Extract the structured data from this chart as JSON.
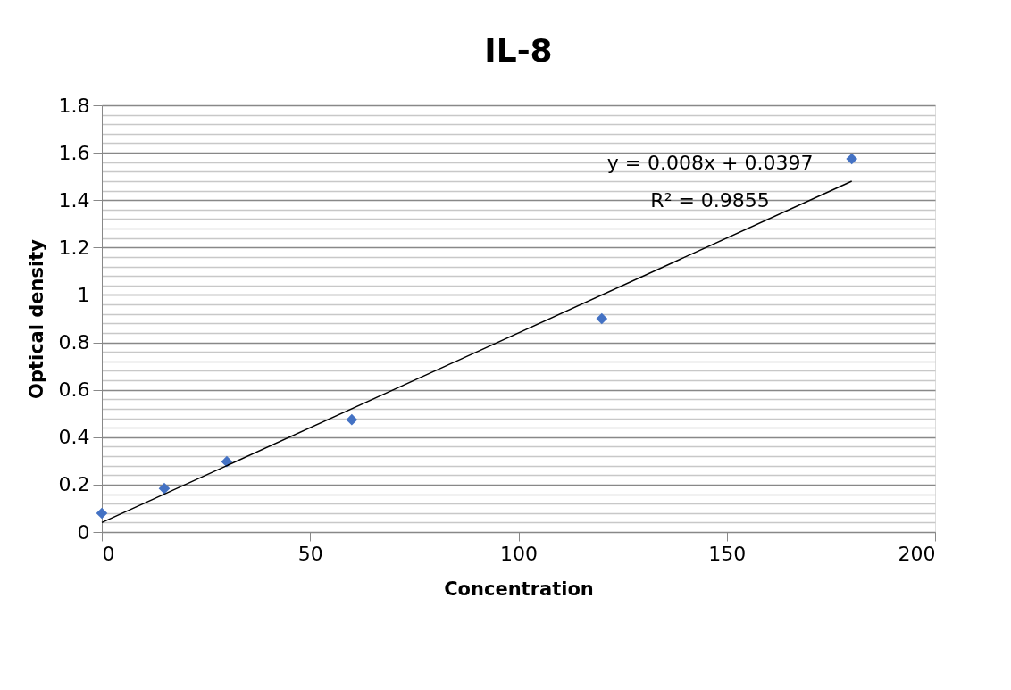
{
  "chart_data": {
    "type": "scatter",
    "title": "IL-8",
    "xlabel": "Concentration",
    "ylabel": "Optical density",
    "x": [
      0,
      15,
      30,
      60,
      120,
      180
    ],
    "series": [
      {
        "color": "#4472c4",
        "marker": "diamond",
        "values": [
          0.079,
          0.184,
          0.297,
          0.474,
          0.9,
          1.574
        ]
      },
      {
        "type": "line",
        "color": "#000000",
        "line_style": "solid",
        "marker": "none",
        "x": [
          0,
          180
        ],
        "values": [
          0.04,
          1.48
        ]
      }
    ],
    "xlim": [
      0,
      200
    ],
    "xticks": [
      0,
      50,
      100,
      150,
      200
    ],
    "ylim": [
      0,
      1.8
    ],
    "yticks": [
      0,
      {
        "value": 0.04,
        "label": null
      },
      {
        "value": 0.08,
        "label": null
      },
      {
        "value": 0.12,
        "label": null
      },
      {
        "value": 0.16,
        "label": null
      },
      0.2,
      {
        "value": 0.24,
        "label": null
      },
      {
        "value": 0.28,
        "label": null
      },
      {
        "value": 0.32,
        "label": null
      },
      {
        "value": 0.36,
        "label": null
      },
      0.4,
      {
        "value": 0.44,
        "label": null
      },
      {
        "value": 0.48,
        "label": null
      },
      {
        "value": 0.52,
        "label": null
      },
      {
        "value": 0.56,
        "label": null
      },
      0.6,
      {
        "value": 0.64,
        "label": null
      },
      {
        "value": 0.68,
        "label": null
      },
      {
        "value": 0.72,
        "label": null
      },
      {
        "value": 0.76,
        "label": null
      },
      0.8,
      {
        "value": 0.84,
        "label": null
      },
      {
        "value": 0.88,
        "label": null
      },
      {
        "value": 0.92,
        "label": null
      },
      {
        "value": 0.96,
        "label": null
      },
      1,
      {
        "value": 1.04,
        "label": null
      },
      {
        "value": 1.08,
        "label": null
      },
      {
        "value": 1.12,
        "label": null
      },
      {
        "value": 1.16,
        "label": null
      },
      1.2,
      {
        "value": 1.24,
        "label": null
      },
      {
        "value": 1.28,
        "label": null
      },
      {
        "value": 1.32,
        "label": null
      },
      {
        "value": 1.36,
        "label": null
      },
      1.4,
      {
        "value": 1.44,
        "label": null
      },
      {
        "value": 1.48,
        "label": null
      },
      {
        "value": 1.52,
        "label": null
      },
      {
        "value": 1.56,
        "label": null
      },
      1.6,
      {
        "value": 1.64,
        "label": null
      },
      {
        "value": 1.68,
        "label": null
      },
      {
        "value": 1.72,
        "label": null
      },
      {
        "value": 1.76,
        "label": null
      },
      1.8
    ],
    "grid": "y",
    "annotations": [
      "y = 0.008x + 0.0397",
      "R² = 0.9855"
    ]
  }
}
